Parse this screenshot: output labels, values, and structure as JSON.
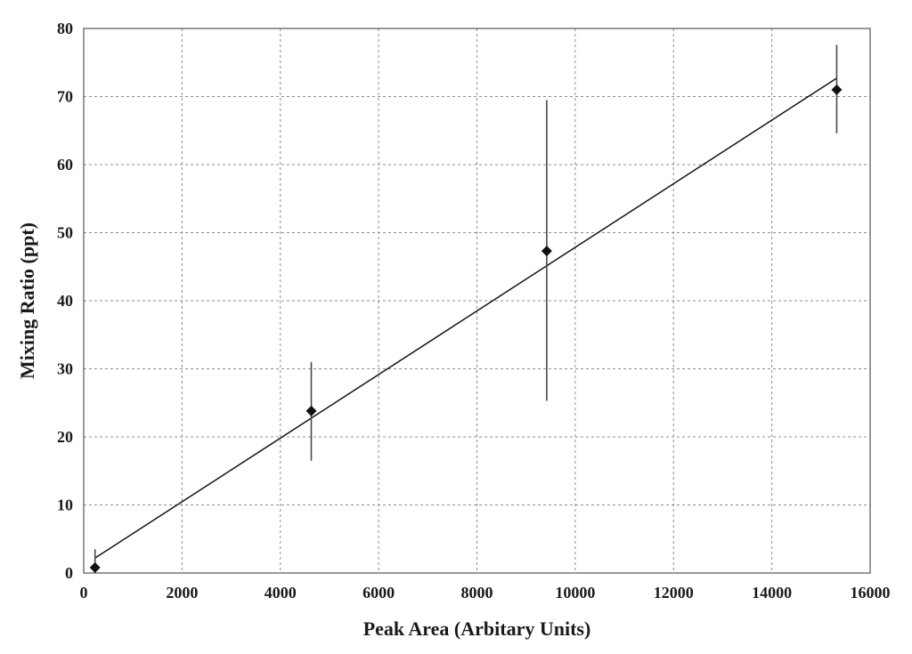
{
  "chart_data": {
    "type": "scatter",
    "title": "",
    "xlabel": "Peak Area (Arbitary Units)",
    "ylabel": "Mixing Ratio (ppt)",
    "xlim": [
      0,
      16000
    ],
    "ylim": [
      0,
      80
    ],
    "x_ticks": [
      "0",
      "2000",
      "4000",
      "6000",
      "8000",
      "10000",
      "12000",
      "14000",
      "16000"
    ],
    "y_ticks": [
      "0",
      "10",
      "20",
      "30",
      "40",
      "50",
      "60",
      "70",
      "80"
    ],
    "grid": true,
    "legend": "none",
    "marker_color": "#111111",
    "points": [
      {
        "x": 230,
        "y": 0.8,
        "err_low": 0.0,
        "err_high": 3.5
      },
      {
        "x": 4630,
        "y": 23.8,
        "err_low": 16.5,
        "err_high": 31.0
      },
      {
        "x": 9420,
        "y": 47.3,
        "err_low": 25.3,
        "err_high": 69.5
      },
      {
        "x": 15320,
        "y": 71.0,
        "err_low": 64.6,
        "err_high": 77.6
      }
    ],
    "trendline": {
      "x": [
        230,
        15320
      ],
      "y": [
        2.2,
        72.7
      ]
    }
  }
}
